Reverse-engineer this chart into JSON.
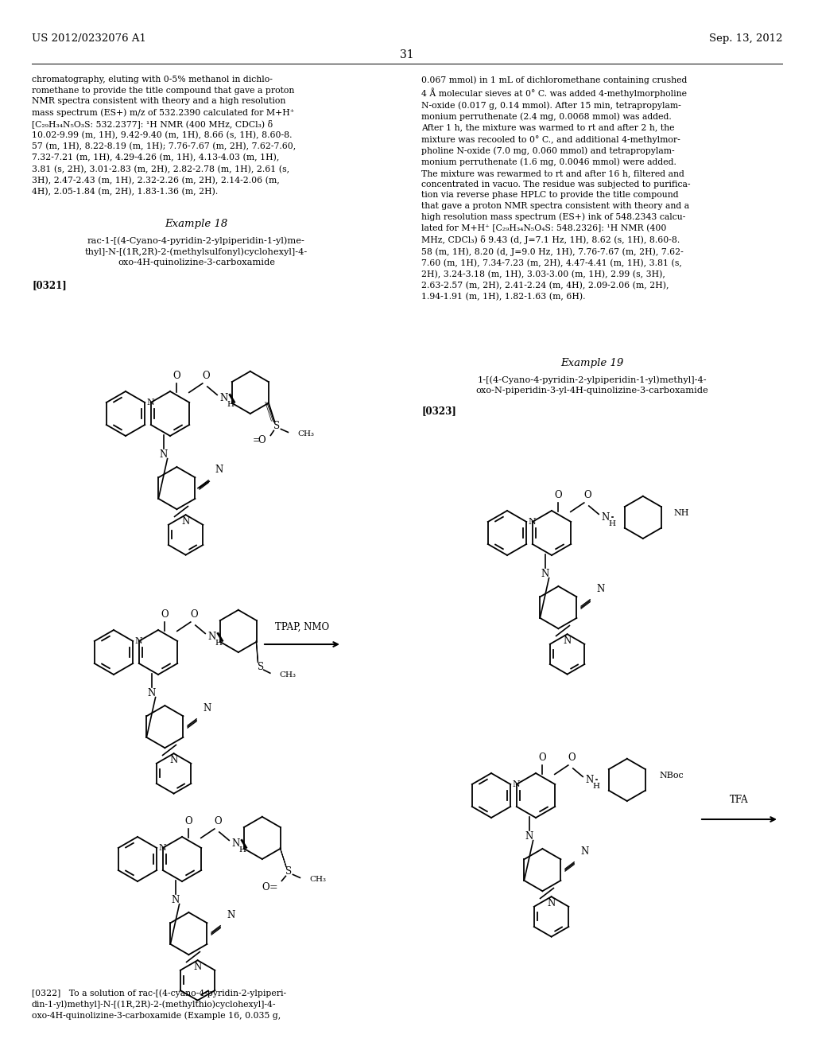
{
  "page_number": "31",
  "header_left": "US 2012/0232076 A1",
  "header_right": "Sep. 13, 2012",
  "background_color": "#ffffff",
  "text_color": "#000000",
  "figsize": [
    10.24,
    13.2
  ],
  "dpi": 100
}
